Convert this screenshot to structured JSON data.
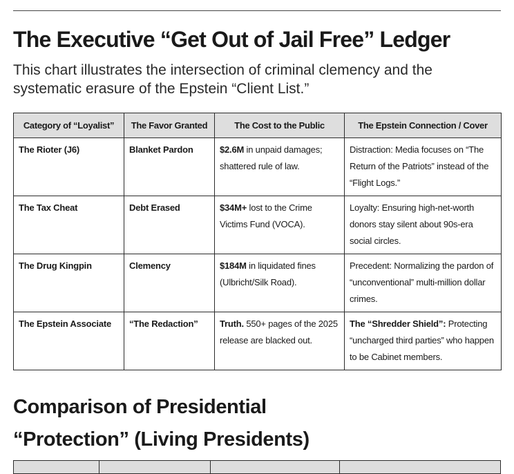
{
  "title": "The Executive “Get Out of Jail Free” Ledger",
  "subtitle": "This chart illustrates the intersection of criminal clemency and the systematic erasure of the Epstein “Client List.”",
  "table": {
    "headers": [
      "Category of “Loyalist”",
      "The Favor Granted",
      "The Cost to the Public",
      "The Epstein Connection / Cover"
    ],
    "rows": [
      {
        "category": "The Rioter (J6)",
        "favor": "Blanket Pardon",
        "cost_bold": "$2.6M",
        "cost_rest": " in unpaid damages; shattered rule of law.",
        "connection_bold": "",
        "connection_rest": "Distraction: Media focuses on “The Return of the Patriots” instead of the “Flight Logs.”"
      },
      {
        "category": "The Tax Cheat",
        "favor": "Debt Erased",
        "cost_bold": "$34M+",
        "cost_rest": " lost to the Crime Victims Fund (VOCA).",
        "connection_bold": "",
        "connection_rest": "Loyalty: Ensuring high-net-worth donors stay silent about 90s-era social circles."
      },
      {
        "category": "The Drug Kingpin",
        "favor": "Clemency",
        "cost_bold": "$184M",
        "cost_rest": " in liquidated fines (Ulbricht/Silk Road).",
        "connection_bold": "",
        "connection_rest": "Precedent: Normalizing the pardon of “unconventional” multi-million dollar crimes."
      },
      {
        "category": "The Epstein Associate",
        "favor": "“The Redaction”",
        "cost_bold": "Truth.",
        "cost_rest": " 550+ pages of the 2025 release are blacked out.",
        "connection_bold": "The “Shredder Shield”:",
        "connection_rest": " Protecting “uncharged third parties” who happen to be Cabinet members."
      }
    ]
  },
  "section2_title_line1": "Comparison of Presidential",
  "section2_title_line2": "“Protection” (Living Presidents)"
}
